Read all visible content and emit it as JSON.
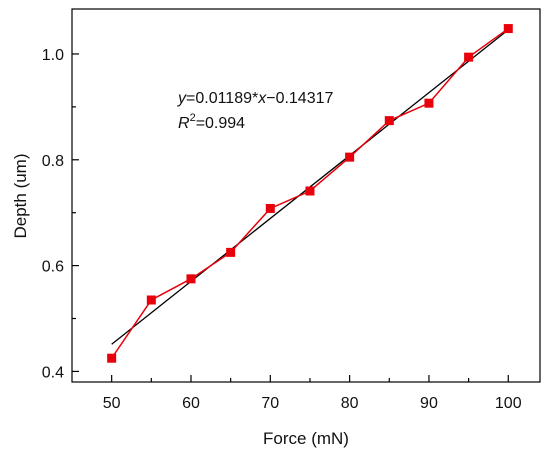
{
  "chart_data": {
    "type": "line",
    "title": "",
    "xlabel": "Force (mN)",
    "ylabel": "Depth (um)",
    "xlim": [
      45,
      104
    ],
    "ylim": [
      0.38,
      1.085
    ],
    "x_ticks": [
      50,
      60,
      70,
      80,
      90,
      100
    ],
    "x_tick_labels": [
      "50",
      "60",
      "70",
      "80",
      "90",
      "100"
    ],
    "y_ticks": [
      0.4,
      0.6,
      0.8,
      1.0
    ],
    "y_tick_labels": [
      "0.4",
      "0.6",
      "0.8",
      "1.0"
    ],
    "grid": false,
    "series": [
      {
        "x": [
          50,
          55,
          60,
          65,
          70,
          75,
          80,
          85,
          90,
          95,
          100
        ],
        "y": [
          0.425,
          0.535,
          0.575,
          0.625,
          0.708,
          0.741,
          0.805,
          0.874,
          0.907,
          0.994,
          1.048
        ],
        "color": "#e8000b",
        "marker": "square"
      }
    ],
    "fit": {
      "slope": 0.01189,
      "intercept": -0.14317,
      "x_range": [
        50,
        100
      ],
      "color": "#000000"
    },
    "annotation": {
      "eq_y": "y",
      "eq_mid": "=0.01189*",
      "eq_x": "x",
      "eq_end": "−0.14317",
      "r_symbol": "R",
      "r_sup": "2",
      "r_value": "=0.994"
    }
  }
}
